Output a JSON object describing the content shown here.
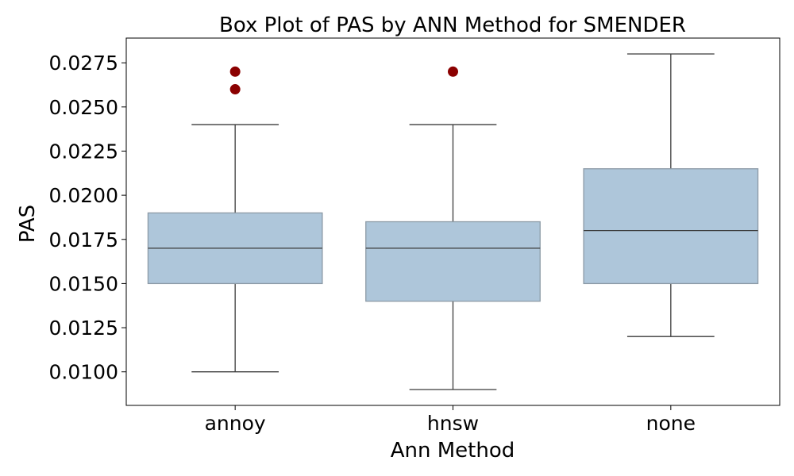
{
  "chart_data": {
    "type": "box",
    "title": "Box Plot of PAS by ANN Method for SMENDER",
    "xlabel": "Ann Method",
    "ylabel": "PAS",
    "ylim": [
      0.0081,
      0.0289
    ],
    "yticks": [
      0.01,
      0.0125,
      0.015,
      0.0175,
      0.02,
      0.0225,
      0.025,
      0.0275
    ],
    "ytick_labels": [
      "0.0100",
      "0.0125",
      "0.0150",
      "0.0175",
      "0.0200",
      "0.0225",
      "0.0250",
      "0.0275"
    ],
    "grid": false,
    "colors": {
      "box_fill": "#aec6da",
      "box_edge": "#8c9aa6",
      "line": "#3a3a3a",
      "outlier": "#8b0000"
    },
    "categories": [
      "annoy",
      "hnsw",
      "none"
    ],
    "boxes": [
      {
        "category": "annoy",
        "whisker_low": 0.01,
        "q1": 0.015,
        "median": 0.017,
        "q3": 0.019,
        "whisker_high": 0.024,
        "outliers": [
          0.026,
          0.027
        ]
      },
      {
        "category": "hnsw",
        "whisker_low": 0.009,
        "q1": 0.014,
        "median": 0.017,
        "q3": 0.0185,
        "whisker_high": 0.024,
        "outliers": [
          0.027
        ]
      },
      {
        "category": "none",
        "whisker_low": 0.012,
        "q1": 0.015,
        "median": 0.018,
        "q3": 0.0215,
        "whisker_high": 0.028,
        "outliers": []
      }
    ]
  }
}
